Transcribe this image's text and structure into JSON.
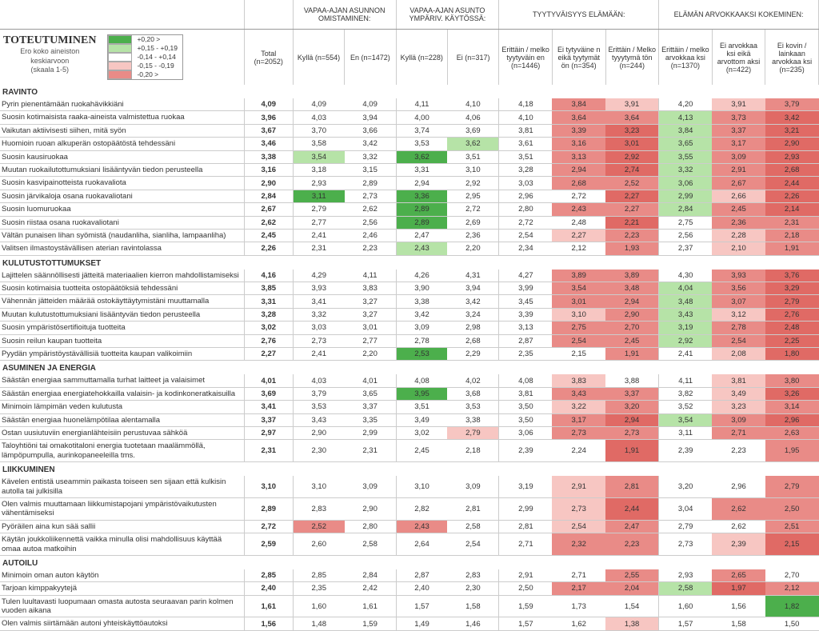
{
  "title": "TOTEUTUMINEN",
  "subtitle": "Ero koko aineiston\nkeskiarvoon\n(skaala 1-5)",
  "legend": [
    {
      "color": "#4caf4c",
      "label": "+0,20 >"
    },
    {
      "color": "#b6e3a7",
      "label": "+0,15  -  +0,19"
    },
    {
      "color": "#ffffff",
      "label": "-0,14  -  +0,14"
    },
    {
      "color": "#f7c6c2",
      "label": "-0,15  -  -0,19"
    },
    {
      "color": "#e98b87",
      "label": "-0,20 >"
    }
  ],
  "colorScale": {
    "strongPos": "#4caf4c",
    "pos": "#b6e3a7",
    "neutral": "#ffffff",
    "neg": "#f7c6c2",
    "strongNeg": "#e98b87",
    "veryStrongNeg": "#e06a65"
  },
  "groupHeaders": [
    {
      "label": "",
      "span": 1
    },
    {
      "label": "",
      "span": 1
    },
    {
      "label": "VAPAA-AJAN ASUNNON OMISTAMINEN:",
      "span": 2
    },
    {
      "label": "VAPAA-AJAN ASUNTO YMPÄRIV. KÄYTÖSSÄ:",
      "span": 2
    },
    {
      "label": "TYYTYVÄISYYS ELÄMÄÄN:",
      "span": 3
    },
    {
      "label": "ELÄMÄN ARVOKKAAKSI KOKEMINEN:",
      "span": 3
    }
  ],
  "columns": [
    {
      "key": "label",
      "label": ""
    },
    {
      "key": "total",
      "label": "Total (n=2052)"
    },
    {
      "key": "c1",
      "label": "Kyllä (n=554)"
    },
    {
      "key": "c2",
      "label": "En (n=1472)"
    },
    {
      "key": "c3",
      "label": "Kyllä (n=228)"
    },
    {
      "key": "c4",
      "label": "Ei (n=317)"
    },
    {
      "key": "c5",
      "label": "Erittäin / melko tyytyväin en (n=1446)"
    },
    {
      "key": "c6",
      "label": "Ei tytyväine n eikä tyytymät ön (n=354)"
    },
    {
      "key": "c7",
      "label": "Erittäin / Melko tyyytymä tön (n=244)"
    },
    {
      "key": "c8",
      "label": "Erittäin / melko arvokkaa ksi (n=1370)"
    },
    {
      "key": "c9",
      "label": "Ei arvokkaa ksi eikä arvottom aksi (n=422)"
    },
    {
      "key": "c10",
      "label": "Ei kovin / lainkaan arvokkaa ksi (n=235)"
    }
  ],
  "sections": [
    {
      "name": "RAVINTO",
      "rows": [
        {
          "label": "Pyrin pienentämään ruokahävikkiäni",
          "total": "4,09",
          "v": [
            "4,09",
            "4,09",
            "4,11",
            "4,10",
            "4,18",
            "3,84",
            "3,91",
            "4,20",
            "3,91",
            "3,79"
          ]
        },
        {
          "label": "Suosin kotimaisista raaka-aineista valmistettua ruokaa",
          "total": "3,96",
          "v": [
            "4,03",
            "3,94",
            "4,00",
            "4,06",
            "4,10",
            "3,64",
            "3,64",
            "4,13",
            "3,73",
            "3,42"
          ]
        },
        {
          "label": "Vaikutan aktiivisesti siihen, mitä syön",
          "total": "3,67",
          "v": [
            "3,70",
            "3,66",
            "3,74",
            "3,69",
            "3,81",
            "3,39",
            "3,23",
            "3,84",
            "3,37",
            "3,21"
          ]
        },
        {
          "label": "Huomioin ruoan alkuperän ostopäätöstä tehdessäni",
          "total": "3,46",
          "v": [
            "3,58",
            "3,42",
            "3,53",
            "3,62",
            "3,61",
            "3,16",
            "3,01",
            "3,65",
            "3,17",
            "2,90"
          ]
        },
        {
          "label": "Suosin kausiruokaa",
          "total": "3,38",
          "v": [
            "3,54",
            "3,32",
            "3,62",
            "3,51",
            "3,51",
            "3,13",
            "2,92",
            "3,55",
            "3,09",
            "2,93"
          ]
        },
        {
          "label": "Muutan ruokailutottumuksiani lisääntyvän tiedon perusteella",
          "total": "3,16",
          "v": [
            "3,18",
            "3,15",
            "3,31",
            "3,10",
            "3,28",
            "2,94",
            "2,74",
            "3,32",
            "2,91",
            "2,68"
          ]
        },
        {
          "label": "Suosin kasvipainotteista ruokavaliota",
          "total": "2,90",
          "v": [
            "2,93",
            "2,89",
            "2,94",
            "2,92",
            "3,03",
            "2,68",
            "2,52",
            "3,06",
            "2,67",
            "2,44"
          ]
        },
        {
          "label": "Suosin järvikaloja osana ruokavaliotani",
          "total": "2,84",
          "v": [
            "3,11",
            "2,73",
            "3,36",
            "2,95",
            "2,96",
            "2,72",
            "2,27",
            "2,99",
            "2,66",
            "2,26"
          ]
        },
        {
          "label": "Suosin luomuruokaa",
          "total": "2,67",
          "v": [
            "2,79",
            "2,62",
            "2,89",
            "2,72",
            "2,80",
            "2,43",
            "2,27",
            "2,84",
            "2,45",
            "2,14"
          ]
        },
        {
          "label": "Suosin riistaa osana ruokavaliotani",
          "total": "2,62",
          "v": [
            "2,77",
            "2,56",
            "2,89",
            "2,69",
            "2,72",
            "2,48",
            "2,21",
            "2,75",
            "2,36",
            "2,31"
          ]
        },
        {
          "label": "Vältän punaisen lihan syömistä (naudanliha, sianliha, lampaanliha)",
          "total": "2,45",
          "v": [
            "2,41",
            "2,46",
            "2,47",
            "2,36",
            "2,54",
            "2,27",
            "2,23",
            "2,56",
            "2,28",
            "2,18"
          ]
        },
        {
          "label": "Valitsen ilmastoystävällisen aterian ravintolassa",
          "total": "2,26",
          "v": [
            "2,31",
            "2,23",
            "2,43",
            "2,20",
            "2,34",
            "2,12",
            "1,93",
            "2,37",
            "2,10",
            "1,91"
          ]
        }
      ]
    },
    {
      "name": "KULUTUSTOTTUMUKSET",
      "rows": [
        {
          "label": "Lajittelen säännöllisesti jätteitä materiaalien kierron mahdollistamiseksi",
          "total": "4,16",
          "v": [
            "4,29",
            "4,11",
            "4,26",
            "4,31",
            "4,27",
            "3,89",
            "3,89",
            "4,30",
            "3,93",
            "3,76"
          ]
        },
        {
          "label": "Suosin kotimaisia tuotteita ostopäätöksiä tehdessäni",
          "total": "3,85",
          "v": [
            "3,93",
            "3,83",
            "3,90",
            "3,94",
            "3,99",
            "3,54",
            "3,48",
            "4,04",
            "3,56",
            "3,29"
          ]
        },
        {
          "label": "Vähennän jätteiden määrää ostokäyttäytymistäni muuttamalla",
          "total": "3,31",
          "v": [
            "3,41",
            "3,27",
            "3,38",
            "3,42",
            "3,45",
            "3,01",
            "2,94",
            "3,48",
            "3,07",
            "2,79"
          ]
        },
        {
          "label": "Muutan kulutustottumuksiani lisääntyvän tiedon perusteella",
          "total": "3,28",
          "v": [
            "3,32",
            "3,27",
            "3,42",
            "3,24",
            "3,39",
            "3,10",
            "2,90",
            "3,43",
            "3,12",
            "2,76"
          ]
        },
        {
          "label": "Suosin ympäristösertifioituja tuotteita",
          "total": "3,02",
          "v": [
            "3,03",
            "3,01",
            "3,09",
            "2,98",
            "3,13",
            "2,75",
            "2,70",
            "3,19",
            "2,78",
            "2,48"
          ]
        },
        {
          "label": "Suosin reilun kaupan tuotteita",
          "total": "2,76",
          "v": [
            "2,73",
            "2,77",
            "2,78",
            "2,68",
            "2,87",
            "2,54",
            "2,45",
            "2,92",
            "2,54",
            "2,25"
          ]
        },
        {
          "label": "Pyydän ympäristöystävällisiä tuotteita kaupan valikoimiin",
          "total": "2,27",
          "v": [
            "2,41",
            "2,20",
            "2,53",
            "2,29",
            "2,35",
            "2,15",
            "1,91",
            "2,41",
            "2,08",
            "1,80"
          ]
        }
      ]
    },
    {
      "name": "ASUMINEN JA ENERGIA",
      "rows": [
        {
          "label": "Säästän energiaa sammuttamalla turhat laitteet ja valaisimet",
          "total": "4,01",
          "v": [
            "4,03",
            "4,01",
            "4,08",
            "4,02",
            "4,08",
            "3,83",
            "3,88",
            "4,11",
            "3,81",
            "3,80"
          ]
        },
        {
          "label": "Säästän energiaa energiatehokkailla valaisin- ja kodinkoneratkaisuilla",
          "total": "3,69",
          "v": [
            "3,79",
            "3,65",
            "3,95",
            "3,68",
            "3,81",
            "3,43",
            "3,37",
            "3,82",
            "3,49",
            "3,26"
          ]
        },
        {
          "label": "Minimoin lämpimän veden kulutusta",
          "total": "3,41",
          "v": [
            "3,53",
            "3,37",
            "3,51",
            "3,53",
            "3,50",
            "3,22",
            "3,20",
            "3,52",
            "3,23",
            "3,14"
          ]
        },
        {
          "label": "Säästän energiaa huonelämpötilaa alentamalla",
          "total": "3,37",
          "v": [
            "3,43",
            "3,35",
            "3,49",
            "3,38",
            "3,50",
            "3,17",
            "2,94",
            "3,54",
            "3,09",
            "2,96"
          ]
        },
        {
          "label": "Ostan uusiutuviin energianlähteisiin perustuvaa sähköä",
          "total": "2,97",
          "v": [
            "2,90",
            "2,99",
            "3,02",
            "2,79",
            "3,06",
            "2,73",
            "2,73",
            "3,11",
            "2,71",
            "2,63"
          ]
        },
        {
          "label": "Taloyhtiöni tai omakotitaloni energia tuotetaan maalämmöllä, lämpöpumpulla, aurinkopaneeleilla tms.",
          "total": "2,31",
          "v": [
            "2,30",
            "2,31",
            "2,45",
            "2,18",
            "2,39",
            "2,24",
            "1,91",
            "2,39",
            "2,23",
            "1,95"
          ]
        }
      ]
    },
    {
      "name": "LIIKKUMINEN",
      "rows": [
        {
          "label": "Kävelen entistä useammin paikasta toiseen sen sijaan että kulkisin autolla tai julkisilla",
          "total": "3,10",
          "v": [
            "3,10",
            "3,09",
            "3,10",
            "3,09",
            "3,19",
            "2,91",
            "2,81",
            "3,20",
            "2,96",
            "2,79"
          ]
        },
        {
          "label": "Olen valmis muuttamaan liikkumistapojani ympäristövaikutusten vähentämiseksi",
          "total": "2,89",
          "v": [
            "2,83",
            "2,90",
            "2,82",
            "2,81",
            "2,99",
            "2,73",
            "2,44",
            "3,04",
            "2,62",
            "2,50"
          ]
        },
        {
          "label": "Pyöräilen aina kun sää sallii",
          "total": "2,72",
          "v": [
            "2,52",
            "2,80",
            "2,43",
            "2,58",
            "2,81",
            "2,54",
            "2,47",
            "2,79",
            "2,62",
            "2,51"
          ]
        },
        {
          "label": "Käytän joukkoliikennettä vaikka minulla olisi mahdollisuus käyttää omaa autoa matkoihin",
          "total": "2,59",
          "v": [
            "2,60",
            "2,58",
            "2,64",
            "2,54",
            "2,71",
            "2,32",
            "2,23",
            "2,73",
            "2,39",
            "2,15"
          ]
        }
      ]
    },
    {
      "name": "AUTOILU",
      "rows": [
        {
          "label": "Minimoin oman auton käytön",
          "total": "2,85",
          "v": [
            "2,85",
            "2,84",
            "2,87",
            "2,83",
            "2,91",
            "2,71",
            "2,55",
            "2,93",
            "2,65",
            "2,70"
          ]
        },
        {
          "label": "Tarjoan kimppakyytejä",
          "total": "2,40",
          "v": [
            "2,35",
            "2,42",
            "2,40",
            "2,30",
            "2,50",
            "2,17",
            "2,04",
            "2,58",
            "1,97",
            "2,12"
          ]
        },
        {
          "label": "Tulen luultavasti luopumaan omasta autosta seuraavan parin kolmen vuoden aikana",
          "total": "1,61",
          "v": [
            "1,60",
            "1,61",
            "1,57",
            "1,58",
            "1,59",
            "1,73",
            "1,54",
            "1,60",
            "1,56",
            "1,82"
          ]
        },
        {
          "label": "Olen valmis siirtämään autoni yhteiskäyttöautoksi",
          "total": "1,56",
          "v": [
            "1,48",
            "1,59",
            "1,49",
            "1,46",
            "1,57",
            "1,62",
            "1,38",
            "1,57",
            "1,58",
            "1,50"
          ]
        }
      ]
    }
  ]
}
